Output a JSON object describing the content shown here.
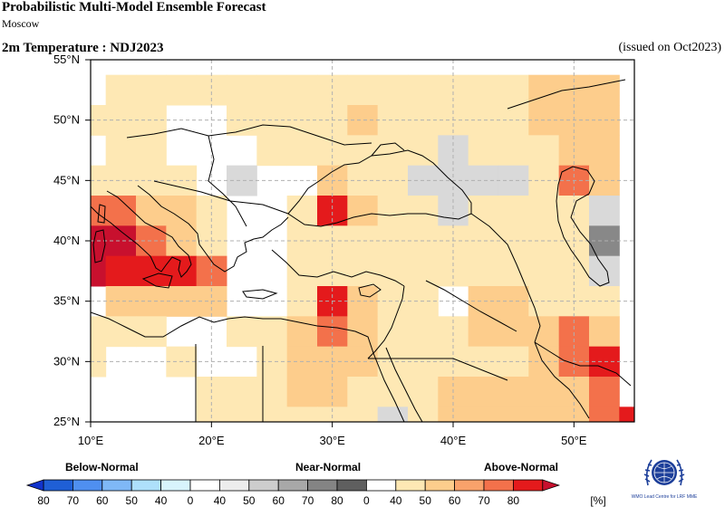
{
  "header": {
    "title": "Probabilistic Multi-Model Ensemble Forecast",
    "subtitle": "Moscow",
    "variable": "2m Temperature : NDJ2023",
    "issued": "(issued on Oct2023)"
  },
  "map": {
    "lon_labels": [
      "10°E",
      "20°E",
      "30°E",
      "40°E",
      "50°E"
    ],
    "lat_labels": [
      "25°N",
      "30°N",
      "35°N",
      "40°N",
      "45°N",
      "50°N",
      "55°N"
    ],
    "cell_size_deg": 2.5,
    "cells": [
      {
        "lon": 12.5,
        "lat": 52.5,
        "c": "#fee8b4"
      },
      {
        "lon": 15.0,
        "lat": 52.5,
        "c": "#fee8b4"
      },
      {
        "lon": 17.5,
        "lat": 52.5,
        "c": "#fee8b4"
      },
      {
        "lon": 20.0,
        "lat": 52.5,
        "c": "#fee8b4"
      },
      {
        "lon": 22.5,
        "lat": 52.5,
        "c": "#fee8b4"
      },
      {
        "lon": 25.0,
        "lat": 52.5,
        "c": "#fee8b4"
      },
      {
        "lon": 27.5,
        "lat": 52.5,
        "c": "#fee8b4"
      },
      {
        "lon": 30.0,
        "lat": 52.5,
        "c": "#fee8b4"
      },
      {
        "lon": 32.5,
        "lat": 52.5,
        "c": "#fee8b4"
      },
      {
        "lon": 35.0,
        "lat": 52.5,
        "c": "#fee8b4"
      },
      {
        "lon": 37.5,
        "lat": 52.5,
        "c": "#fee8b4"
      },
      {
        "lon": 40.0,
        "lat": 52.5,
        "c": "#fee8b4"
      },
      {
        "lon": 42.5,
        "lat": 52.5,
        "c": "#fee8b4"
      },
      {
        "lon": 45.0,
        "lat": 52.5,
        "c": "#fee8b4"
      },
      {
        "lon": 47.5,
        "lat": 52.5,
        "c": "#fdcd8c"
      },
      {
        "lon": 50.0,
        "lat": 52.5,
        "c": "#fdcd8c"
      },
      {
        "lon": 52.5,
        "lat": 52.5,
        "c": "#fdcd8c"
      },
      {
        "lon": 10.0,
        "lat": 50.0,
        "c": "#fee8b4"
      },
      {
        "lon": 12.5,
        "lat": 50.0,
        "c": "#fee8b4"
      },
      {
        "lon": 15.0,
        "lat": 50.0,
        "c": "#fee8b4"
      },
      {
        "lon": 22.5,
        "lat": 50.0,
        "c": "#fee8b4"
      },
      {
        "lon": 25.0,
        "lat": 50.0,
        "c": "#fee8b4"
      },
      {
        "lon": 27.5,
        "lat": 50.0,
        "c": "#fee8b4"
      },
      {
        "lon": 30.0,
        "lat": 50.0,
        "c": "#fee8b4"
      },
      {
        "lon": 32.5,
        "lat": 50.0,
        "c": "#fdcd8c"
      },
      {
        "lon": 35.0,
        "lat": 50.0,
        "c": "#fee8b4"
      },
      {
        "lon": 37.5,
        "lat": 50.0,
        "c": "#fee8b4"
      },
      {
        "lon": 40.0,
        "lat": 50.0,
        "c": "#fee8b4"
      },
      {
        "lon": 42.5,
        "lat": 50.0,
        "c": "#fee8b4"
      },
      {
        "lon": 45.0,
        "lat": 50.0,
        "c": "#fee8b4"
      },
      {
        "lon": 47.5,
        "lat": 50.0,
        "c": "#fdcd8c"
      },
      {
        "lon": 50.0,
        "lat": 50.0,
        "c": "#fdcd8c"
      },
      {
        "lon": 52.5,
        "lat": 50.0,
        "c": "#fdcd8c"
      },
      {
        "lon": 12.5,
        "lat": 47.5,
        "c": "#fee8b4"
      },
      {
        "lon": 15.0,
        "lat": 47.5,
        "c": "#fee8b4"
      },
      {
        "lon": 25.0,
        "lat": 47.5,
        "c": "#fee8b4"
      },
      {
        "lon": 27.5,
        "lat": 47.5,
        "c": "#fee8b4"
      },
      {
        "lon": 30.0,
        "lat": 47.5,
        "c": "#fee8b4"
      },
      {
        "lon": 32.5,
        "lat": 47.5,
        "c": "#fee8b4"
      },
      {
        "lon": 35.0,
        "lat": 47.5,
        "c": "#fee8b4"
      },
      {
        "lon": 37.5,
        "lat": 47.5,
        "c": "#fee8b4"
      },
      {
        "lon": 40.0,
        "lat": 47.5,
        "c": "#d9d9d9"
      },
      {
        "lon": 42.5,
        "lat": 47.5,
        "c": "#fee8b4"
      },
      {
        "lon": 45.0,
        "lat": 47.5,
        "c": "#fee8b4"
      },
      {
        "lon": 47.5,
        "lat": 47.5,
        "c": "#fee8b4"
      },
      {
        "lon": 50.0,
        "lat": 47.5,
        "c": "#fdcd8c"
      },
      {
        "lon": 52.5,
        "lat": 47.5,
        "c": "#fdcd8c"
      },
      {
        "lon": 10.0,
        "lat": 45.0,
        "c": "#fee8b4"
      },
      {
        "lon": 12.5,
        "lat": 45.0,
        "c": "#fee8b4"
      },
      {
        "lon": 15.0,
        "lat": 45.0,
        "c": "#fee8b4"
      },
      {
        "lon": 17.5,
        "lat": 45.0,
        "c": "#fee8b4"
      },
      {
        "lon": 22.5,
        "lat": 45.0,
        "c": "#d9d9d9"
      },
      {
        "lon": 30.0,
        "lat": 45.0,
        "c": "#fdcd8c"
      },
      {
        "lon": 32.5,
        "lat": 45.0,
        "c": "#fee8b4"
      },
      {
        "lon": 35.0,
        "lat": 45.0,
        "c": "#fee8b4"
      },
      {
        "lon": 37.5,
        "lat": 45.0,
        "c": "#d9d9d9"
      },
      {
        "lon": 40.0,
        "lat": 45.0,
        "c": "#d9d9d9"
      },
      {
        "lon": 42.5,
        "lat": 45.0,
        "c": "#d9d9d9"
      },
      {
        "lon": 45.0,
        "lat": 45.0,
        "c": "#d9d9d9"
      },
      {
        "lon": 47.5,
        "lat": 45.0,
        "c": "#fee8b4"
      },
      {
        "lon": 50.0,
        "lat": 45.0,
        "c": "#f3714b"
      },
      {
        "lon": 52.5,
        "lat": 45.0,
        "c": "#fdcd8c"
      },
      {
        "lon": 10.0,
        "lat": 42.5,
        "c": "#f3714b"
      },
      {
        "lon": 12.5,
        "lat": 42.5,
        "c": "#f3714b"
      },
      {
        "lon": 15.0,
        "lat": 42.5,
        "c": "#fdcd8c"
      },
      {
        "lon": 17.5,
        "lat": 42.5,
        "c": "#fdcd8c"
      },
      {
        "lon": 20.0,
        "lat": 42.5,
        "c": "#fee8b4"
      },
      {
        "lon": 27.5,
        "lat": 42.5,
        "c": "#fee8b4"
      },
      {
        "lon": 30.0,
        "lat": 42.5,
        "c": "#e41a1c"
      },
      {
        "lon": 32.5,
        "lat": 42.5,
        "c": "#fdcd8c"
      },
      {
        "lon": 35.0,
        "lat": 42.5,
        "c": "#fee8b4"
      },
      {
        "lon": 37.5,
        "lat": 42.5,
        "c": "#fee8b4"
      },
      {
        "lon": 40.0,
        "lat": 42.5,
        "c": "#d9d9d9"
      },
      {
        "lon": 42.5,
        "lat": 42.5,
        "c": "#fee8b4"
      },
      {
        "lon": 45.0,
        "lat": 42.5,
        "c": "#fee8b4"
      },
      {
        "lon": 47.5,
        "lat": 42.5,
        "c": "#fee8b4"
      },
      {
        "lon": 50.0,
        "lat": 42.5,
        "c": "#fee8b4"
      },
      {
        "lon": 52.5,
        "lat": 42.5,
        "c": "#d9d9d9"
      },
      {
        "lon": 10.0,
        "lat": 40.0,
        "c": "#c8102e"
      },
      {
        "lon": 12.5,
        "lat": 40.0,
        "c": "#c8102e"
      },
      {
        "lon": 15.0,
        "lat": 40.0,
        "c": "#f3714b"
      },
      {
        "lon": 17.5,
        "lat": 40.0,
        "c": "#fdcd8c"
      },
      {
        "lon": 20.0,
        "lat": 40.0,
        "c": "#fee8b4"
      },
      {
        "lon": 27.5,
        "lat": 40.0,
        "c": "#fee8b4"
      },
      {
        "lon": 30.0,
        "lat": 40.0,
        "c": "#fee8b4"
      },
      {
        "lon": 32.5,
        "lat": 40.0,
        "c": "#fee8b4"
      },
      {
        "lon": 35.0,
        "lat": 40.0,
        "c": "#fee8b4"
      },
      {
        "lon": 37.5,
        "lat": 40.0,
        "c": "#fee8b4"
      },
      {
        "lon": 40.0,
        "lat": 40.0,
        "c": "#fee8b4"
      },
      {
        "lon": 42.5,
        "lat": 40.0,
        "c": "#fee8b4"
      },
      {
        "lon": 45.0,
        "lat": 40.0,
        "c": "#fee8b4"
      },
      {
        "lon": 47.5,
        "lat": 40.0,
        "c": "#fee8b4"
      },
      {
        "lon": 50.0,
        "lat": 40.0,
        "c": "#fee8b4"
      },
      {
        "lon": 52.5,
        "lat": 40.0,
        "c": "#888888"
      },
      {
        "lon": 10.0,
        "lat": 37.5,
        "c": "#c8102e"
      },
      {
        "lon": 12.5,
        "lat": 37.5,
        "c": "#e41a1c"
      },
      {
        "lon": 15.0,
        "lat": 37.5,
        "c": "#e41a1c"
      },
      {
        "lon": 17.5,
        "lat": 37.5,
        "c": "#e41a1c"
      },
      {
        "lon": 20.0,
        "lat": 37.5,
        "c": "#f3714b"
      },
      {
        "lon": 27.5,
        "lat": 37.5,
        "c": "#fee8b4"
      },
      {
        "lon": 30.0,
        "lat": 37.5,
        "c": "#fee8b4"
      },
      {
        "lon": 32.5,
        "lat": 37.5,
        "c": "#fee8b4"
      },
      {
        "lon": 35.0,
        "lat": 37.5,
        "c": "#fee8b4"
      },
      {
        "lon": 37.5,
        "lat": 37.5,
        "c": "#fee8b4"
      },
      {
        "lon": 40.0,
        "lat": 37.5,
        "c": "#fee8b4"
      },
      {
        "lon": 42.5,
        "lat": 37.5,
        "c": "#fee8b4"
      },
      {
        "lon": 45.0,
        "lat": 37.5,
        "c": "#fee8b4"
      },
      {
        "lon": 47.5,
        "lat": 37.5,
        "c": "#fee8b4"
      },
      {
        "lon": 50.0,
        "lat": 37.5,
        "c": "#fee8b4"
      },
      {
        "lon": 52.5,
        "lat": 37.5,
        "c": "#d9d9d9"
      },
      {
        "lon": 12.5,
        "lat": 35.0,
        "c": "#fdcd8c"
      },
      {
        "lon": 15.0,
        "lat": 35.0,
        "c": "#fdcd8c"
      },
      {
        "lon": 17.5,
        "lat": 35.0,
        "c": "#fdcd8c"
      },
      {
        "lon": 20.0,
        "lat": 35.0,
        "c": "#fdcd8c"
      },
      {
        "lon": 27.5,
        "lat": 35.0,
        "c": "#fee8b4"
      },
      {
        "lon": 30.0,
        "lat": 35.0,
        "c": "#e41a1c"
      },
      {
        "lon": 32.5,
        "lat": 35.0,
        "c": "#fdcd8c"
      },
      {
        "lon": 35.0,
        "lat": 35.0,
        "c": "#fee8b4"
      },
      {
        "lon": 37.5,
        "lat": 35.0,
        "c": "#fee8b4"
      },
      {
        "lon": 42.5,
        "lat": 35.0,
        "c": "#fdcd8c"
      },
      {
        "lon": 45.0,
        "lat": 35.0,
        "c": "#fdcd8c"
      },
      {
        "lon": 47.5,
        "lat": 35.0,
        "c": "#fee8b4"
      },
      {
        "lon": 50.0,
        "lat": 35.0,
        "c": "#fee8b4"
      },
      {
        "lon": 52.5,
        "lat": 35.0,
        "c": "#fee8b4"
      },
      {
        "lon": 10.0,
        "lat": 32.5,
        "c": "#fee8b4"
      },
      {
        "lon": 12.5,
        "lat": 32.5,
        "c": "#fee8b4"
      },
      {
        "lon": 15.0,
        "lat": 32.5,
        "c": "#fee8b4"
      },
      {
        "lon": 22.5,
        "lat": 32.5,
        "c": "#fee8b4"
      },
      {
        "lon": 25.0,
        "lat": 32.5,
        "c": "#fee8b4"
      },
      {
        "lon": 27.5,
        "lat": 32.5,
        "c": "#fdcd8c"
      },
      {
        "lon": 30.0,
        "lat": 32.5,
        "c": "#f3714b"
      },
      {
        "lon": 32.5,
        "lat": 32.5,
        "c": "#fdcd8c"
      },
      {
        "lon": 35.0,
        "lat": 32.5,
        "c": "#fee8b4"
      },
      {
        "lon": 37.5,
        "lat": 32.5,
        "c": "#fee8b4"
      },
      {
        "lon": 40.0,
        "lat": 32.5,
        "c": "#fee8b4"
      },
      {
        "lon": 42.5,
        "lat": 32.5,
        "c": "#fdcd8c"
      },
      {
        "lon": 45.0,
        "lat": 32.5,
        "c": "#fdcd8c"
      },
      {
        "lon": 47.5,
        "lat": 32.5,
        "c": "#fdcd8c"
      },
      {
        "lon": 50.0,
        "lat": 32.5,
        "c": "#f3714b"
      },
      {
        "lon": 52.5,
        "lat": 32.5,
        "c": "#fdcd8c"
      },
      {
        "lon": 10.0,
        "lat": 30.0,
        "c": "#fee8b4"
      },
      {
        "lon": 17.5,
        "lat": 30.0,
        "c": "#fee8b4"
      },
      {
        "lon": 25.0,
        "lat": 30.0,
        "c": "#fee8b4"
      },
      {
        "lon": 27.5,
        "lat": 30.0,
        "c": "#fdcd8c"
      },
      {
        "lon": 30.0,
        "lat": 30.0,
        "c": "#fdcd8c"
      },
      {
        "lon": 32.5,
        "lat": 30.0,
        "c": "#fdcd8c"
      },
      {
        "lon": 35.0,
        "lat": 30.0,
        "c": "#fee8b4"
      },
      {
        "lon": 37.5,
        "lat": 30.0,
        "c": "#fee8b4"
      },
      {
        "lon": 40.0,
        "lat": 30.0,
        "c": "#fee8b4"
      },
      {
        "lon": 42.5,
        "lat": 30.0,
        "c": "#fee8b4"
      },
      {
        "lon": 45.0,
        "lat": 30.0,
        "c": "#fee8b4"
      },
      {
        "lon": 47.5,
        "lat": 30.0,
        "c": "#fdcd8c"
      },
      {
        "lon": 50.0,
        "lat": 30.0,
        "c": "#f3714b"
      },
      {
        "lon": 52.5,
        "lat": 30.0,
        "c": "#e41a1c"
      },
      {
        "lon": 20.0,
        "lat": 27.5,
        "c": "#fee8b4"
      },
      {
        "lon": 22.5,
        "lat": 27.5,
        "c": "#fee8b4"
      },
      {
        "lon": 25.0,
        "lat": 27.5,
        "c": "#fee8b4"
      },
      {
        "lon": 27.5,
        "lat": 27.5,
        "c": "#fdcd8c"
      },
      {
        "lon": 30.0,
        "lat": 27.5,
        "c": "#fdcd8c"
      },
      {
        "lon": 32.5,
        "lat": 27.5,
        "c": "#fee8b4"
      },
      {
        "lon": 35.0,
        "lat": 27.5,
        "c": "#fee8b4"
      },
      {
        "lon": 37.5,
        "lat": 27.5,
        "c": "#fee8b4"
      },
      {
        "lon": 40.0,
        "lat": 27.5,
        "c": "#fdcd8c"
      },
      {
        "lon": 42.5,
        "lat": 27.5,
        "c": "#fdcd8c"
      },
      {
        "lon": 45.0,
        "lat": 27.5,
        "c": "#fdcd8c"
      },
      {
        "lon": 47.5,
        "lat": 27.5,
        "c": "#fdcd8c"
      },
      {
        "lon": 50.0,
        "lat": 27.5,
        "c": "#fdcd8c"
      },
      {
        "lon": 52.5,
        "lat": 27.5,
        "c": "#f3714b"
      },
      {
        "lon": 20.0,
        "lat": 25.0,
        "c": "#fee8b4"
      },
      {
        "lon": 22.5,
        "lat": 25.0,
        "c": "#fee8b4"
      },
      {
        "lon": 25.0,
        "lat": 25.0,
        "c": "#fee8b4"
      },
      {
        "lon": 27.5,
        "lat": 25.0,
        "c": "#fee8b4"
      },
      {
        "lon": 30.0,
        "lat": 25.0,
        "c": "#fee8b4"
      },
      {
        "lon": 32.5,
        "lat": 25.0,
        "c": "#fee8b4"
      },
      {
        "lon": 35.0,
        "lat": 25.0,
        "c": "#d9d9d9"
      },
      {
        "lon": 37.5,
        "lat": 25.0,
        "c": "#fee8b4"
      },
      {
        "lon": 40.0,
        "lat": 25.0,
        "c": "#fdcd8c"
      },
      {
        "lon": 42.5,
        "lat": 25.0,
        "c": "#fdcd8c"
      },
      {
        "lon": 45.0,
        "lat": 25.0,
        "c": "#fdcd8c"
      },
      {
        "lon": 47.5,
        "lat": 25.0,
        "c": "#fdcd8c"
      },
      {
        "lon": 50.0,
        "lat": 25.0,
        "c": "#fdcd8c"
      },
      {
        "lon": 52.5,
        "lat": 25.0,
        "c": "#f3714b"
      },
      {
        "lon": 55.0,
        "lat": 25.0,
        "c": "#e41a1c"
      }
    ]
  },
  "legend": {
    "below_label": "Below-Normal",
    "near_label": "Near-Normal",
    "above_label": "Above-Normal",
    "unit": "[%]",
    "boxes": [
      {
        "c": "#1f5fd6",
        "t": "80"
      },
      {
        "c": "#4f8ff0",
        "t": "70"
      },
      {
        "c": "#7fb8f7",
        "t": "60"
      },
      {
        "c": "#aee0fb",
        "t": "50"
      },
      {
        "c": "#d8f4fd",
        "t": "40"
      },
      {
        "c": "#ffffff",
        "t": "0"
      },
      {
        "c": "#ededed",
        "t": "40"
      },
      {
        "c": "#cdcdcd",
        "t": "50"
      },
      {
        "c": "#a8a8a8",
        "t": "60"
      },
      {
        "c": "#848484",
        "t": "70"
      },
      {
        "c": "#5f5f5f",
        "t": "80"
      },
      {
        "c": "#ffffff",
        "t": "0"
      },
      {
        "c": "#fee8b4",
        "t": "40"
      },
      {
        "c": "#fdcd8c",
        "t": "50"
      },
      {
        "c": "#f9a26b",
        "t": "60"
      },
      {
        "c": "#f3714b",
        "t": "70"
      },
      {
        "c": "#e41a1c",
        "t": "80"
      }
    ]
  },
  "logo": {
    "text": "WMO Lead Centre for LRF MME"
  }
}
